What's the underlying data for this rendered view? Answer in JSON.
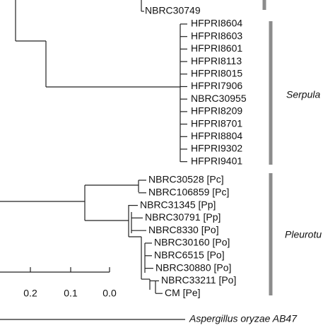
{
  "top_leaf": "NBRC30749",
  "clades": [
    {
      "label": "Serpula",
      "leaves": [
        "HFPRI8604",
        "HFPRI8603",
        "HFPRI8601",
        "HFPRI8113",
        "HFPRI8015",
        "HFPRI7906",
        "NBRC30955",
        "HFPRI8209",
        "HFPRI8701",
        "HFPRI8804",
        "HFPRI9302",
        "HFPRI9401"
      ]
    },
    {
      "label": "Pleurotu",
      "leaves": [
        "NBRC30528 [Pc]",
        "NBRC106859 [Pc]",
        "NBRC31345 [Pp]",
        "NBRC30791 [Pp]",
        "NBRC8330 [Po]",
        "NBRC30160 [Po]",
        "NBRC6515 [Po]",
        "NBRC30880 [Po]",
        "NBRC33211 [Po]",
        "CM [Pe]"
      ]
    }
  ],
  "scale_ticks": [
    "0.2",
    "0.1",
    "0.0"
  ],
  "outgroup": "Aspergillus oryzae AB47"
}
